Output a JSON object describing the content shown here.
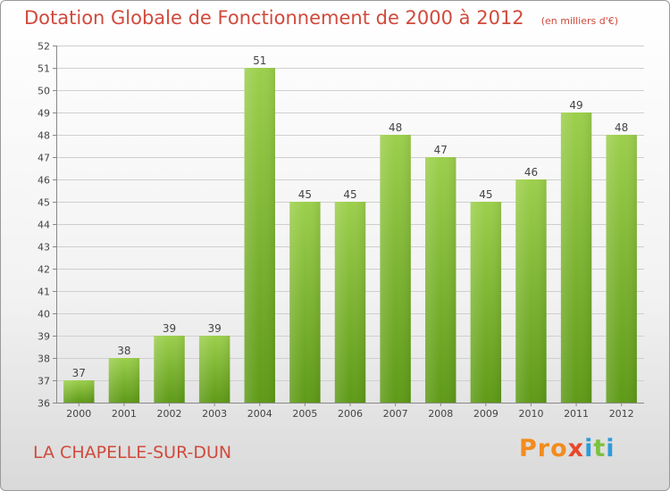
{
  "header": {
    "title": "Dotation Globale de Fonctionnement de 2000 à 2012",
    "unit": "(en milliers d'€)"
  },
  "footer": {
    "commune": "LA CHAPELLE-SUR-DUN",
    "logo": "Proxiti"
  },
  "colors": {
    "bar_light": "#9ccf4c",
    "bar_dark": "#5e9a17",
    "title": "#d04a3c"
  },
  "chart_data": {
    "type": "bar",
    "title": "Dotation Globale de Fonctionnement de 2000 à 2012",
    "categories": [
      "2000",
      "2001",
      "2002",
      "2003",
      "2004",
      "2005",
      "2006",
      "2007",
      "2008",
      "2009",
      "2010",
      "2011",
      "2012"
    ],
    "values": [
      37,
      38,
      39,
      39,
      51,
      45,
      45,
      48,
      47,
      45,
      46,
      49,
      48
    ],
    "ylim": [
      36,
      52
    ],
    "yticks": [
      36,
      37,
      38,
      39,
      40,
      41,
      42,
      43,
      44,
      45,
      46,
      47,
      48,
      49,
      50,
      51,
      52
    ],
    "grid": true,
    "legend": "none"
  }
}
